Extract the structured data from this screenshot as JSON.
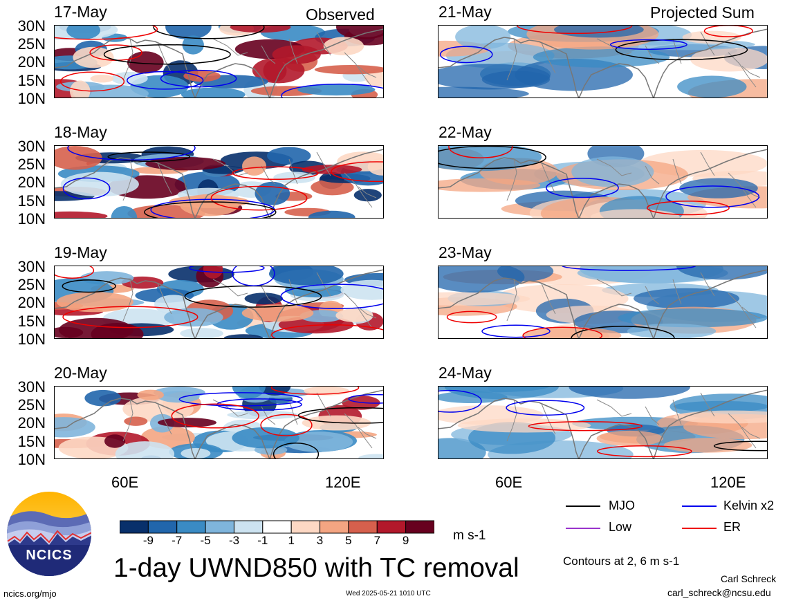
{
  "panels": [
    {
      "date": "17-May",
      "tag": "Observed"
    },
    {
      "date": "18-May",
      "tag": ""
    },
    {
      "date": "19-May",
      "tag": ""
    },
    {
      "date": "20-May",
      "tag": ""
    },
    {
      "date": "21-May",
      "tag": "Projected Sum"
    },
    {
      "date": "22-May",
      "tag": ""
    },
    {
      "date": "23-May",
      "tag": ""
    },
    {
      "date": "24-May",
      "tag": ""
    }
  ],
  "lat_labels": [
    "30N",
    "25N",
    "20N",
    "15N",
    "10N"
  ],
  "lon_labels": [
    "60E",
    "120E"
  ],
  "colorbar": {
    "labels": [
      "-9",
      "-7",
      "-5",
      "-3",
      "-1",
      "1",
      "3",
      "5",
      "7",
      "9"
    ],
    "colors": [
      "#08306b",
      "#2166ac",
      "#3a8bc4",
      "#7fb5dc",
      "#cde3f1",
      "#ffffff",
      "#fdd8c4",
      "#f4a582",
      "#d6604d",
      "#b2182b",
      "#67001f"
    ],
    "unit": "m s-1"
  },
  "title": "1-day UWND850 with TC removal",
  "legend": {
    "items": [
      {
        "label": "MJO",
        "color": "#000000"
      },
      {
        "label": "Kelvin x2",
        "color": "#0000ee"
      },
      {
        "label": "Low",
        "color": "#9933cc"
      },
      {
        "label": "ER",
        "color": "#ee0000"
      }
    ],
    "contours_note": "Contours at 2, 6 m s-1"
  },
  "logo": {
    "text": "NCICS"
  },
  "footer": {
    "left": "ncics.org/mjo",
    "center": "Wed 2025-05-21 1010 UTC",
    "author": "Carl Schreck",
    "email": "carl_schreck@ncsu.edu"
  }
}
